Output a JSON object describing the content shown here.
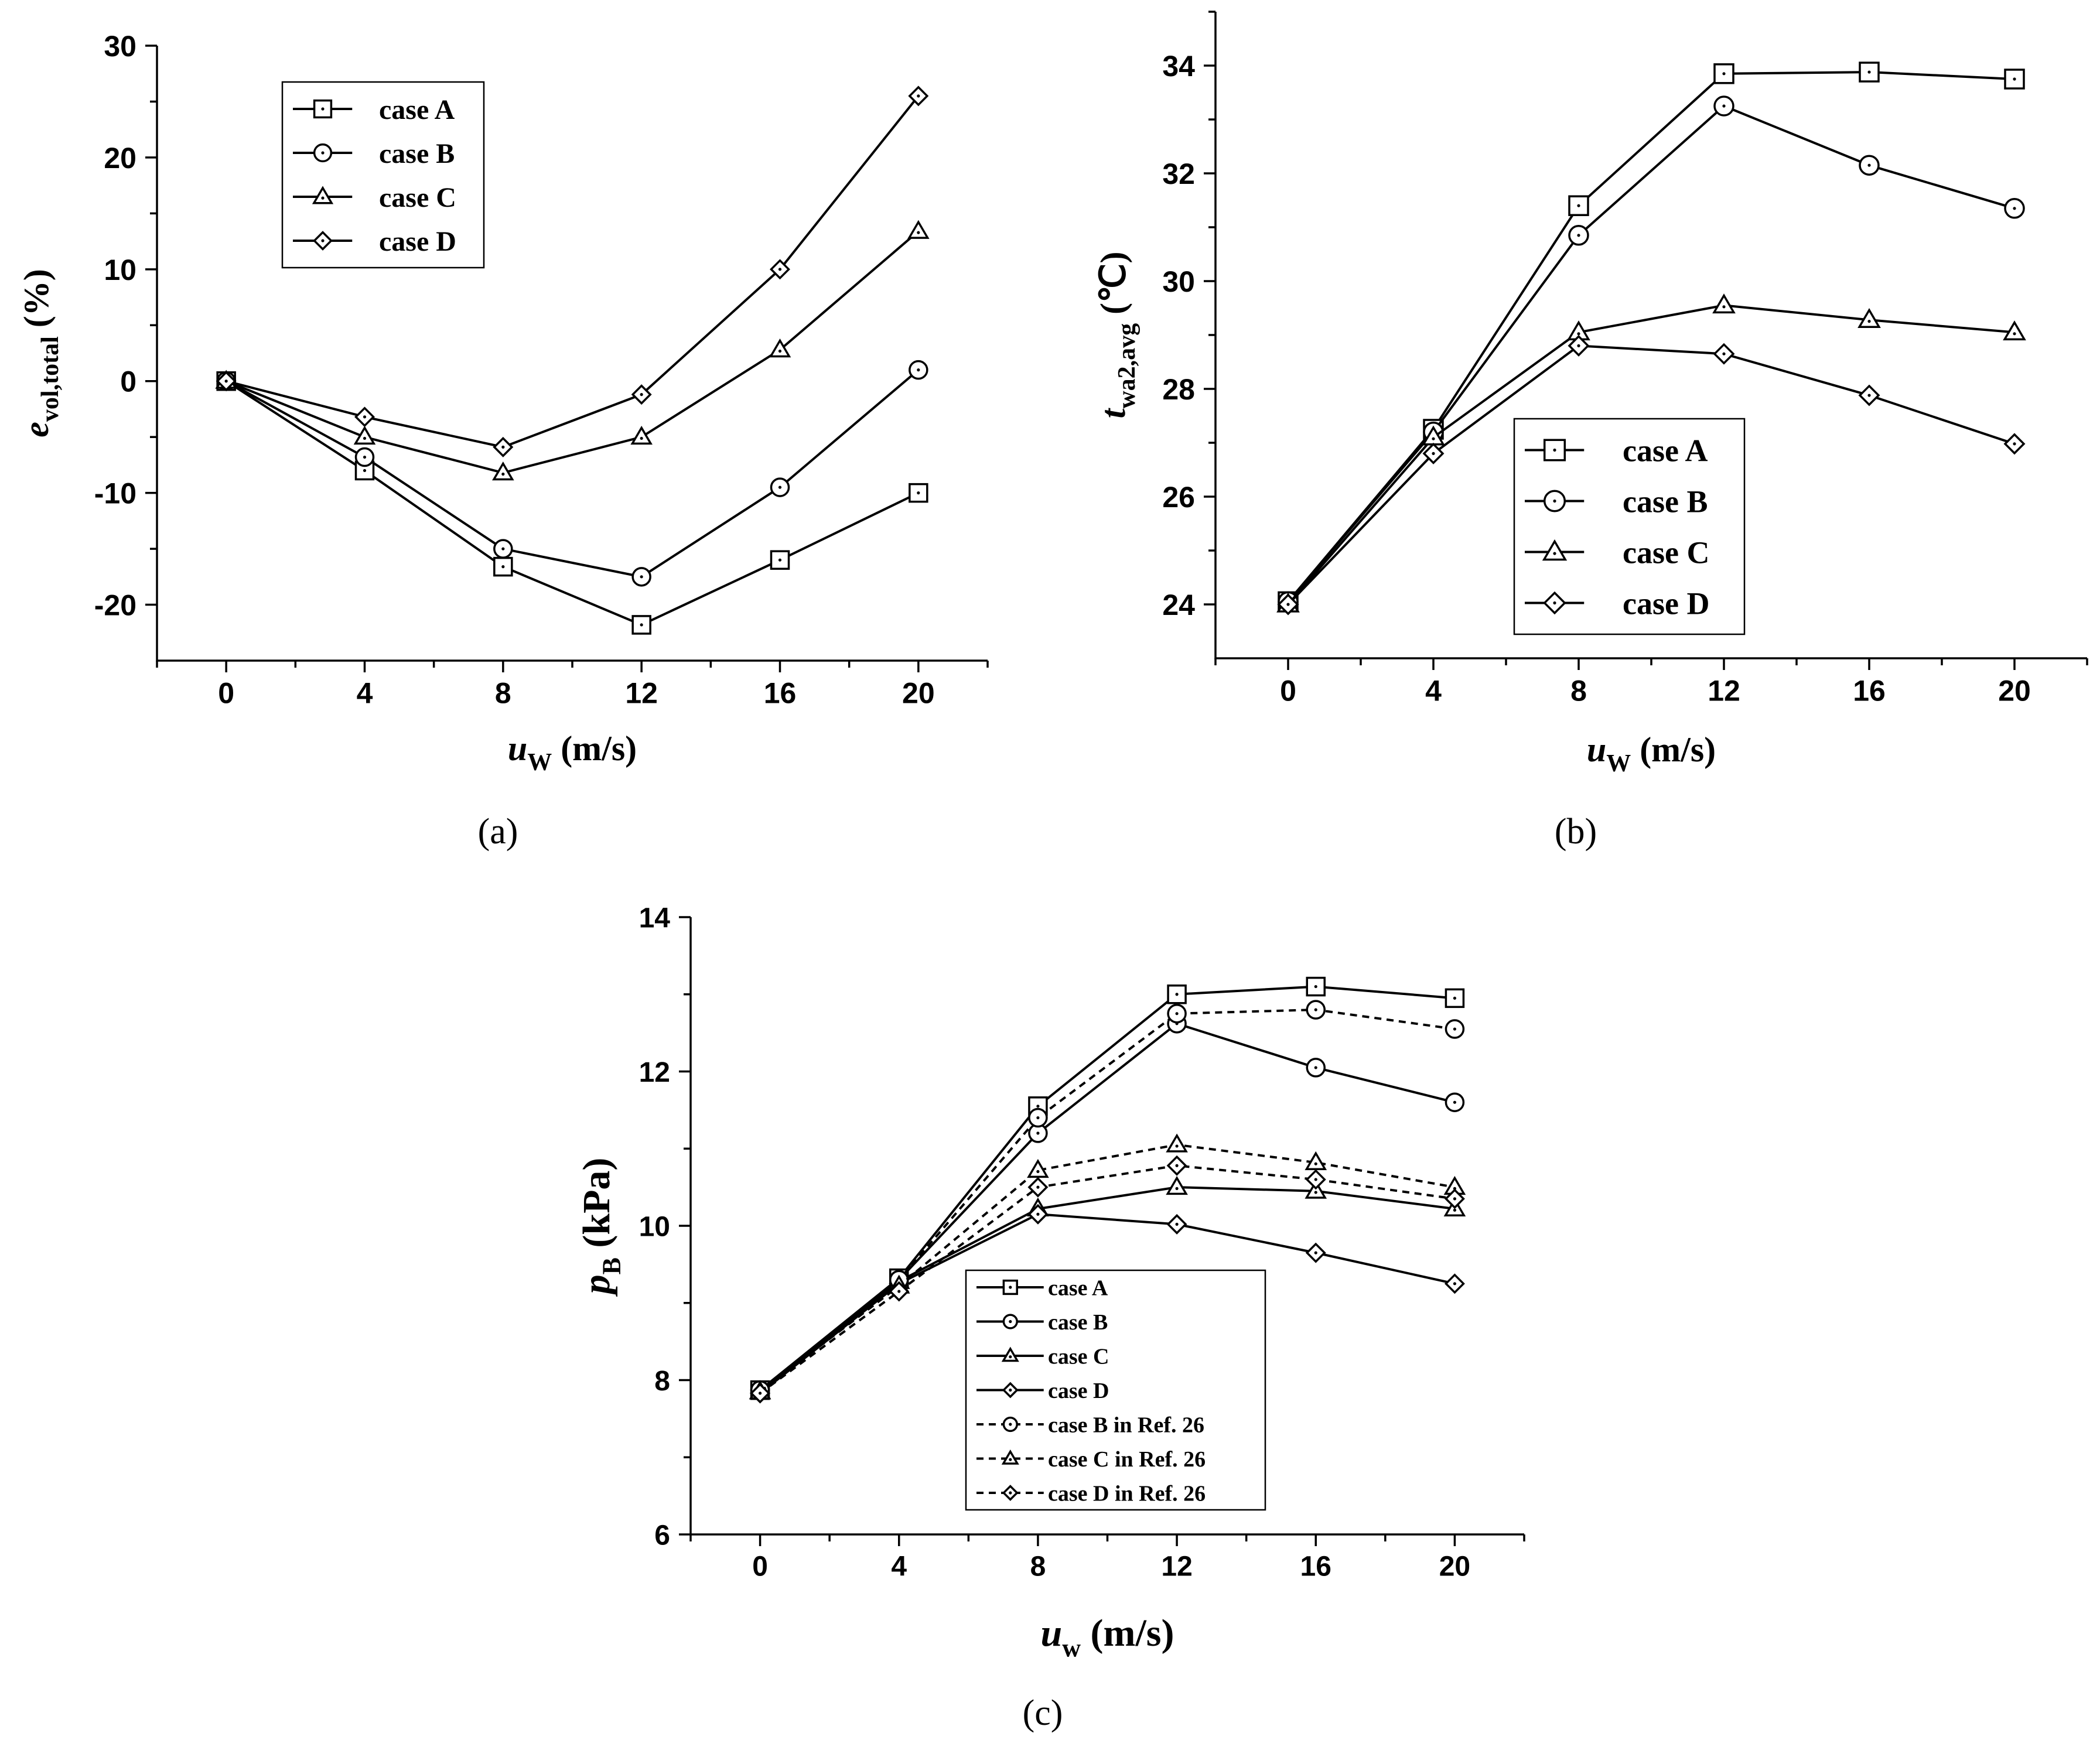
{
  "panels": [
    {
      "id": "a",
      "caption": "(a)",
      "chart_data": {
        "type": "line",
        "x": [
          0,
          4,
          8,
          12,
          16,
          20
        ],
        "xlim": [
          -2,
          22
        ],
        "xticks": [
          0,
          4,
          8,
          12,
          16,
          20
        ],
        "ylim": [
          -25,
          30
        ],
        "yticks": [
          -20,
          -10,
          0,
          10,
          20,
          30
        ],
        "xlabel": {
          "var": "u",
          "sub": "W",
          "unit": " (m/s)"
        },
        "ylabel": {
          "var": "e",
          "sub": "vol,total",
          "unit": " (%)"
        },
        "legend_position": "upper-left",
        "series": [
          {
            "name": "case A",
            "marker": "square",
            "style": "solid",
            "values": [
              0,
              -8,
              -16.6,
              -21.8,
              -16,
              -10
            ]
          },
          {
            "name": "case B",
            "marker": "circle",
            "style": "solid",
            "values": [
              0,
              -6.8,
              -15,
              -17.5,
              -9.5,
              1
            ]
          },
          {
            "name": "case C",
            "marker": "triangle",
            "style": "solid",
            "values": [
              0,
              -5,
              -8.2,
              -5,
              2.8,
              13.4
            ]
          },
          {
            "name": "case D",
            "marker": "diamond",
            "style": "solid",
            "values": [
              0,
              -3.2,
              -5.9,
              -1.2,
              10,
              25.5
            ]
          }
        ]
      }
    },
    {
      "id": "b",
      "caption": "(b)",
      "chart_data": {
        "type": "line",
        "x": [
          0,
          4,
          8,
          12,
          16,
          20
        ],
        "xlim": [
          -2,
          22
        ],
        "xticks": [
          0,
          4,
          8,
          12,
          16,
          20
        ],
        "ylim": [
          23,
          35
        ],
        "yticks": [
          24,
          26,
          28,
          30,
          32,
          34
        ],
        "xlabel": {
          "var": "u",
          "sub": "W",
          "unit": " (m/s)"
        },
        "ylabel": {
          "var": "t",
          "sub": "wa2,avg",
          "unit": " (℃)"
        },
        "legend_position": "lower-middle",
        "series": [
          {
            "name": "case A",
            "marker": "square",
            "style": "solid",
            "values": [
              24.05,
              27.25,
              31.4,
              33.85,
              33.88,
              33.75
            ]
          },
          {
            "name": "case B",
            "marker": "circle",
            "style": "solid",
            "values": [
              24.05,
              27.2,
              30.85,
              33.25,
              32.15,
              31.35
            ]
          },
          {
            "name": "case C",
            "marker": "triangle",
            "style": "solid",
            "values": [
              24.0,
              27.1,
              29.05,
              29.55,
              29.28,
              29.05
            ]
          },
          {
            "name": "case D",
            "marker": "diamond",
            "style": "solid",
            "values": [
              24.0,
              26.8,
              28.8,
              28.65,
              27.88,
              26.98
            ]
          }
        ]
      }
    },
    {
      "id": "c",
      "caption": "(c)",
      "chart_data": {
        "type": "line",
        "x": [
          0,
          4,
          8,
          12,
          16,
          20
        ],
        "xlim": [
          -2,
          22
        ],
        "xticks": [
          0,
          4,
          8,
          12,
          16,
          20
        ],
        "ylim": [
          6,
          14
        ],
        "yticks": [
          6,
          8,
          10,
          12,
          14
        ],
        "xlabel": {
          "var": "u",
          "sub": "w",
          "unit": " (m/s)"
        },
        "ylabel": {
          "var": "p",
          "sub": "B",
          "unit": " (kPa)"
        },
        "legend_position": "lower-middle",
        "series": [
          {
            "name": "case A",
            "marker": "square",
            "style": "solid",
            "values": [
              7.87,
              9.32,
              11.55,
              13.0,
              13.1,
              12.95
            ]
          },
          {
            "name": "case B",
            "marker": "circle",
            "style": "solid",
            "values": [
              7.87,
              9.3,
              11.2,
              12.62,
              12.05,
              11.6
            ]
          },
          {
            "name": "case C",
            "marker": "triangle",
            "style": "solid",
            "values": [
              7.85,
              9.28,
              10.22,
              10.5,
              10.45,
              10.22
            ]
          },
          {
            "name": "case D",
            "marker": "diamond",
            "style": "solid",
            "values": [
              7.83,
              9.25,
              10.15,
              10.02,
              9.65,
              9.25
            ]
          },
          {
            "name": "case B in Ref. 26",
            "marker": "circle",
            "style": "dashed",
            "values": [
              7.87,
              9.3,
              11.4,
              12.75,
              12.8,
              12.55
            ]
          },
          {
            "name": "case C in Ref. 26",
            "marker": "triangle",
            "style": "dashed",
            "values": [
              7.85,
              9.22,
              10.72,
              11.05,
              10.82,
              10.5
            ]
          },
          {
            "name": "case D in Ref. 26",
            "marker": "diamond",
            "style": "dashed",
            "values": [
              7.83,
              9.15,
              10.5,
              10.78,
              10.6,
              10.35
            ]
          }
        ]
      }
    }
  ]
}
